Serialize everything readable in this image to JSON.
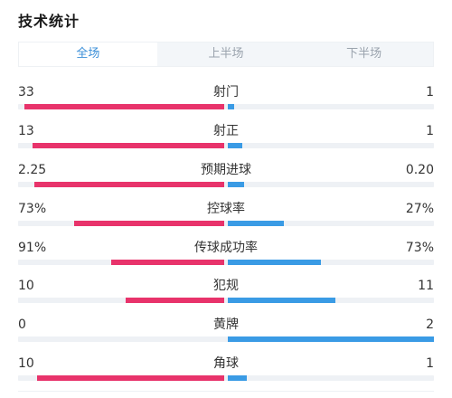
{
  "title": "技术统计",
  "tabs": [
    {
      "label": "全场",
      "active": true
    },
    {
      "label": "上半场",
      "active": false
    },
    {
      "label": "下半场",
      "active": false
    }
  ],
  "colors": {
    "home": "#e8336b",
    "away": "#3a9be5",
    "accent": "#3b8fd8"
  },
  "stats": [
    {
      "name": "射门",
      "home": "33",
      "away": "1",
      "home_share": 0.97,
      "away_share": 0.03
    },
    {
      "name": "射正",
      "home": "13",
      "away": "1",
      "home_share": 0.93,
      "away_share": 0.07
    },
    {
      "name": "预期进球",
      "home": "2.25",
      "away": "0.20",
      "home_share": 0.92,
      "away_share": 0.08
    },
    {
      "name": "控球率",
      "home": "73%",
      "away": "27%",
      "home_share": 0.73,
      "away_share": 0.27
    },
    {
      "name": "传球成功率",
      "home": "91%",
      "away": "73%",
      "home_share": 0.55,
      "away_share": 0.45
    },
    {
      "name": "犯规",
      "home": "10",
      "away": "11",
      "home_share": 0.48,
      "away_share": 0.52
    },
    {
      "name": "黄牌",
      "home": "0",
      "away": "2",
      "home_share": 0.0,
      "away_share": 1.0
    },
    {
      "name": "角球",
      "home": "10",
      "away": "1",
      "home_share": 0.91,
      "away_share": 0.09
    }
  ]
}
